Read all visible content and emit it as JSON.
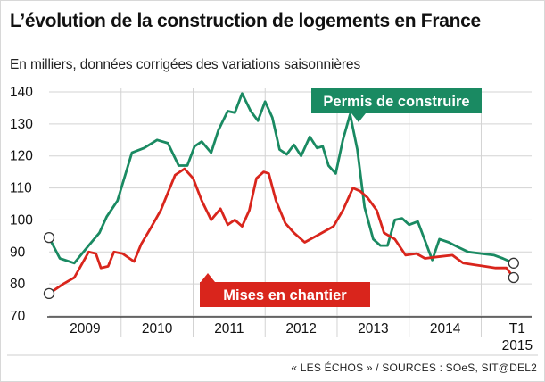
{
  "title": "L’évolution de la construction de logements en France",
  "subtitle": "En milliers, données corrigées des variations saisonnières",
  "source": "« LES ÉCHOS » / SOURCES : SOeS, SIT@DEL2",
  "colors": {
    "background": "#ffffff",
    "permis": "#1a8a62",
    "mises": "#d9251c",
    "grid": "#d3d3d3",
    "axis": "#222222",
    "text": "#111111"
  },
  "chart_data": {
    "type": "line",
    "title": "L’évolution de la construction de logements en France",
    "subtitle": "En milliers, données corrigées des variations saisonnières",
    "xlabel": "",
    "ylabel": "",
    "ylim": [
      70,
      140
    ],
    "xlim": [
      2008.5,
      2015.2
    ],
    "grid": true,
    "y_ticks": [
      "70",
      "80",
      "90",
      "100",
      "110",
      "120",
      "130",
      "140"
    ],
    "x_ticks": [
      {
        "x": 2009,
        "label": "2009"
      },
      {
        "x": 2010,
        "label": "2010"
      },
      {
        "x": 2011,
        "label": "2011"
      },
      {
        "x": 2012,
        "label": "2012"
      },
      {
        "x": 2013,
        "label": "2013"
      },
      {
        "x": 2014,
        "label": "2014"
      },
      {
        "x": 2015,
        "label": "T1"
      }
    ],
    "extra_label": "2015",
    "series": [
      {
        "name": "Permis de construire",
        "label_position": "top-right",
        "points": [
          [
            2008.5,
            94.5
          ],
          [
            2008.65,
            88
          ],
          [
            2008.85,
            86.5
          ],
          [
            2009.05,
            92
          ],
          [
            2009.2,
            96
          ],
          [
            2009.3,
            101
          ],
          [
            2009.45,
            106
          ],
          [
            2009.65,
            121
          ],
          [
            2009.82,
            122.5
          ],
          [
            2010.0,
            125
          ],
          [
            2010.15,
            124
          ],
          [
            2010.3,
            117
          ],
          [
            2010.42,
            117
          ],
          [
            2010.52,
            123
          ],
          [
            2010.62,
            124.5
          ],
          [
            2010.75,
            121
          ],
          [
            2010.85,
            128
          ],
          [
            2010.98,
            134
          ],
          [
            2011.08,
            133.5
          ],
          [
            2011.18,
            139.5
          ],
          [
            2011.3,
            134
          ],
          [
            2011.4,
            131
          ],
          [
            2011.5,
            137
          ],
          [
            2011.6,
            132
          ],
          [
            2011.7,
            122
          ],
          [
            2011.8,
            120.5
          ],
          [
            2011.9,
            123.5
          ],
          [
            2012.0,
            120
          ],
          [
            2012.12,
            126
          ],
          [
            2012.22,
            122.5
          ],
          [
            2012.3,
            123
          ],
          [
            2012.38,
            117
          ],
          [
            2012.48,
            114.5
          ],
          [
            2012.58,
            125
          ],
          [
            2012.68,
            133
          ],
          [
            2012.78,
            122
          ],
          [
            2012.88,
            104
          ],
          [
            2013.0,
            94
          ],
          [
            2013.1,
            92
          ],
          [
            2013.2,
            92
          ],
          [
            2013.3,
            100
          ],
          [
            2013.4,
            100.5
          ],
          [
            2013.5,
            98.5
          ],
          [
            2013.62,
            99.5
          ],
          [
            2013.72,
            93.5
          ],
          [
            2013.82,
            87.5
          ],
          [
            2013.92,
            94
          ],
          [
            2014.05,
            93
          ],
          [
            2014.18,
            91.5
          ],
          [
            2014.32,
            90
          ],
          [
            2014.5,
            89.5
          ],
          [
            2014.68,
            89
          ],
          [
            2014.8,
            88
          ],
          [
            2014.95,
            86.5
          ]
        ]
      },
      {
        "name": "Mises en chantier",
        "label_position": "bottom-center",
        "points": [
          [
            2008.5,
            77
          ],
          [
            2008.7,
            80
          ],
          [
            2008.85,
            82
          ],
          [
            2009.05,
            90
          ],
          [
            2009.15,
            89.5
          ],
          [
            2009.22,
            85
          ],
          [
            2009.32,
            85.5
          ],
          [
            2009.4,
            90
          ],
          [
            2009.52,
            89.5
          ],
          [
            2009.68,
            87
          ],
          [
            2009.78,
            92.5
          ],
          [
            2009.9,
            97
          ],
          [
            2010.05,
            103
          ],
          [
            2010.25,
            114
          ],
          [
            2010.38,
            116
          ],
          [
            2010.5,
            113
          ],
          [
            2010.62,
            106
          ],
          [
            2010.75,
            100
          ],
          [
            2010.88,
            103.5
          ],
          [
            2010.98,
            98.5
          ],
          [
            2011.08,
            100
          ],
          [
            2011.18,
            98
          ],
          [
            2011.28,
            103
          ],
          [
            2011.38,
            113
          ],
          [
            2011.48,
            115
          ],
          [
            2011.55,
            114.5
          ],
          [
            2011.65,
            106
          ],
          [
            2011.78,
            99
          ],
          [
            2011.9,
            96
          ],
          [
            2012.05,
            93
          ],
          [
            2012.25,
            95.5
          ],
          [
            2012.45,
            98
          ],
          [
            2012.58,
            103
          ],
          [
            2012.72,
            110
          ],
          [
            2012.82,
            109
          ],
          [
            2012.92,
            107
          ],
          [
            2013.05,
            103
          ],
          [
            2013.15,
            96
          ],
          [
            2013.3,
            94
          ],
          [
            2013.45,
            89
          ],
          [
            2013.6,
            89.5
          ],
          [
            2013.72,
            88
          ],
          [
            2013.9,
            88.5
          ],
          [
            2014.1,
            89
          ],
          [
            2014.25,
            86.5
          ],
          [
            2014.4,
            86
          ],
          [
            2014.55,
            85.5
          ],
          [
            2014.7,
            85
          ],
          [
            2014.85,
            85
          ],
          [
            2014.95,
            82
          ]
        ]
      }
    ],
    "endpoint_markers": [
      {
        "series": "Permis de construire",
        "x": 2008.5,
        "y": 94.5
      },
      {
        "series": "Mises en chantier",
        "x": 2008.5,
        "y": 77
      },
      {
        "series": "Permis de construire",
        "x": 2014.95,
        "y": 86.5
      },
      {
        "series": "Mises en chantier",
        "x": 2014.95,
        "y": 82
      }
    ]
  }
}
